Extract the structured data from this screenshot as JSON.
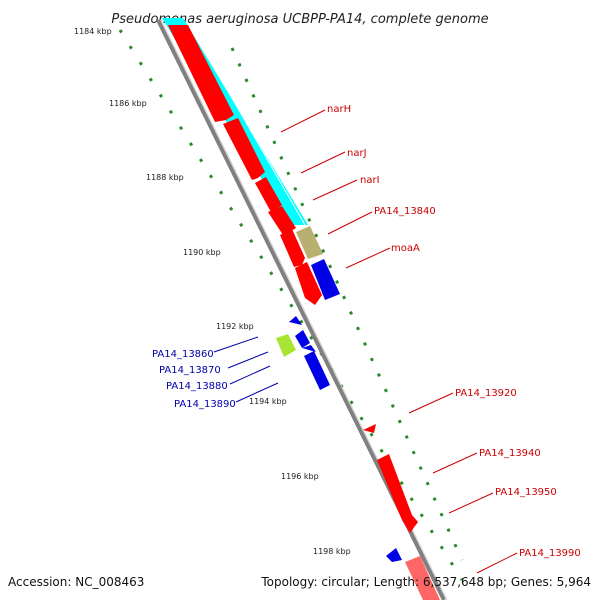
{
  "title": "Pseudomonas aeruginosa UCBPP-PA14, complete genome",
  "ticks": [
    "1184 kbp",
    "1186 kbp",
    "1188 kbp",
    "1190 kbp",
    "1192 kbp",
    "1194 kbp",
    "1196 kbp",
    "1198 kbp"
  ],
  "genes_right": [
    "narH",
    "narJ",
    "narI",
    "PA14_13840",
    "moaA",
    "PA14_13920",
    "PA14_13940",
    "PA14_13950",
    "PA14_13990"
  ],
  "genes_left": [
    "PA14_13860",
    "PA14_13870",
    "PA14_13880",
    "PA14_13890"
  ],
  "footer": {
    "accession": "Accession: NC_008463",
    "summary": "Topology: circular; Length: 6,537,648 bp; Genes: 5,964"
  },
  "colors": {
    "forward_cds": "#ff0000",
    "reverse_cds": "#0000e6",
    "cyan_track": "#00ffff",
    "khaki_feature": "#b8b070",
    "lime_feature": "#a8e633",
    "backbone": "#888888",
    "label_right": "#cc0000",
    "label_left": "#0000aa",
    "gc_dots": "#2a8a2a"
  }
}
